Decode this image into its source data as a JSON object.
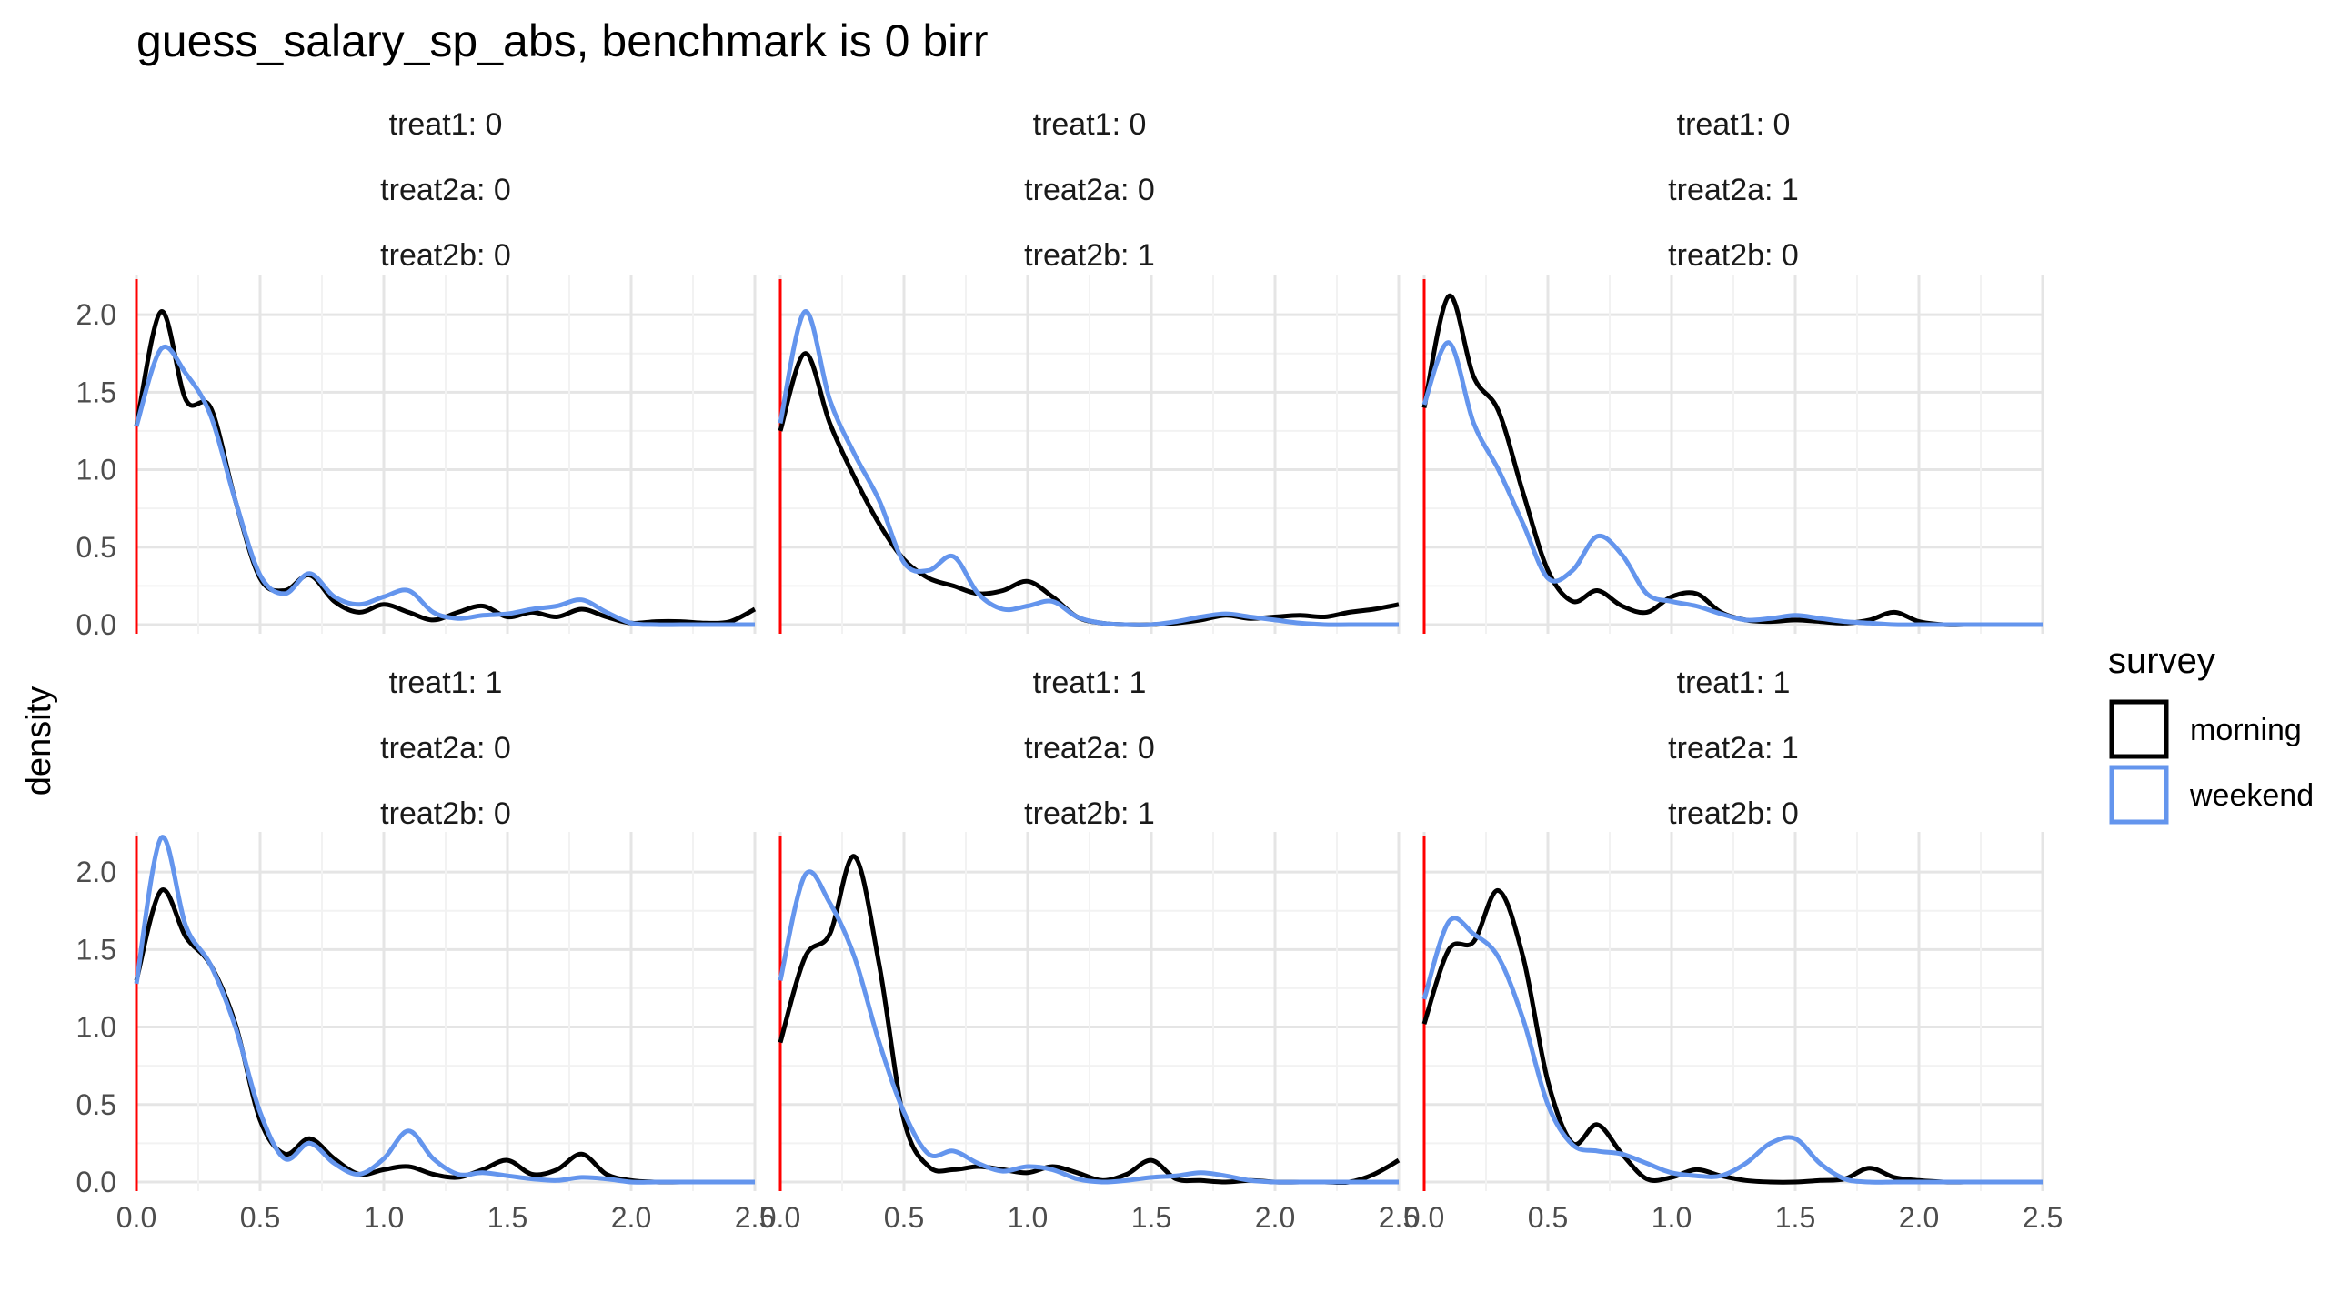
{
  "chart_data": {
    "type": "line",
    "title": "guess_salary_sp_abs, benchmark is 0 birr",
    "xlabel": "",
    "ylabel": "density",
    "xlim": [
      0,
      2.5
    ],
    "ylim": [
      0,
      2.2
    ],
    "x_ticks": [
      "0.0",
      "0.5",
      "1.0",
      "1.5",
      "2.0",
      "2.5"
    ],
    "y_ticks": [
      "0.0",
      "0.5",
      "1.0",
      "1.5",
      "2.0"
    ],
    "benchmark_line": {
      "x": 0,
      "color": "#ff0000"
    },
    "grid": true,
    "legend": {
      "title": "survey",
      "position": "right",
      "entries": [
        {
          "name": "morning",
          "color": "#000000"
        },
        {
          "name": "weekend",
          "color": "#6495ed"
        }
      ]
    },
    "x": [
      0.0,
      0.1,
      0.2,
      0.3,
      0.4,
      0.5,
      0.6,
      0.7,
      0.8,
      0.9,
      1.0,
      1.1,
      1.2,
      1.3,
      1.4,
      1.5,
      1.6,
      1.7,
      1.8,
      1.9,
      2.0,
      2.1,
      2.2,
      2.3,
      2.4,
      2.5
    ],
    "panels": [
      {
        "strip": [
          "treat1: 0",
          "treat2a: 0",
          "treat2b: 0"
        ],
        "series": [
          {
            "name": "morning",
            "values": [
              1.28,
              2.02,
              1.45,
              1.4,
              0.8,
              0.3,
              0.22,
              0.32,
              0.15,
              0.08,
              0.13,
              0.08,
              0.03,
              0.08,
              0.12,
              0.05,
              0.08,
              0.05,
              0.1,
              0.05,
              0.01,
              0.02,
              0.02,
              0.01,
              0.02,
              0.1
            ]
          },
          {
            "name": "weekend",
            "values": [
              1.28,
              1.78,
              1.62,
              1.35,
              0.8,
              0.32,
              0.2,
              0.33,
              0.18,
              0.13,
              0.18,
              0.22,
              0.08,
              0.04,
              0.06,
              0.07,
              0.1,
              0.12,
              0.16,
              0.08,
              0.01,
              0.0,
              0.0,
              0.0,
              0.0,
              0.0
            ]
          }
        ]
      },
      {
        "strip": [
          "treat1: 0",
          "treat2a: 0",
          "treat2b: 1"
        ],
        "series": [
          {
            "name": "morning",
            "values": [
              1.25,
              1.75,
              1.3,
              0.95,
              0.65,
              0.42,
              0.3,
              0.25,
              0.2,
              0.22,
              0.28,
              0.18,
              0.05,
              0.01,
              0.0,
              0.0,
              0.01,
              0.03,
              0.06,
              0.04,
              0.05,
              0.06,
              0.05,
              0.08,
              0.1,
              0.13
            ]
          },
          {
            "name": "weekend",
            "values": [
              1.3,
              2.02,
              1.45,
              1.1,
              0.8,
              0.4,
              0.35,
              0.44,
              0.2,
              0.1,
              0.12,
              0.15,
              0.05,
              0.01,
              0.0,
              0.0,
              0.02,
              0.05,
              0.07,
              0.05,
              0.03,
              0.01,
              0.0,
              0.0,
              0.0,
              0.0
            ]
          }
        ]
      },
      {
        "strip": [
          "treat1: 0",
          "treat2a: 1",
          "treat2b: 0"
        ],
        "series": [
          {
            "name": "morning",
            "values": [
              1.4,
              2.12,
              1.6,
              1.38,
              0.85,
              0.35,
              0.15,
              0.22,
              0.12,
              0.08,
              0.18,
              0.2,
              0.08,
              0.03,
              0.02,
              0.03,
              0.02,
              0.01,
              0.03,
              0.08,
              0.02,
              0.0,
              0.0,
              0.0,
              0.0,
              0.0
            ]
          },
          {
            "name": "weekend",
            "values": [
              1.42,
              1.82,
              1.3,
              1.0,
              0.65,
              0.3,
              0.35,
              0.57,
              0.45,
              0.2,
              0.15,
              0.12,
              0.07,
              0.03,
              0.04,
              0.06,
              0.04,
              0.02,
              0.01,
              0.0,
              0.0,
              0.0,
              0.0,
              0.0,
              0.0,
              0.0
            ]
          }
        ]
      },
      {
        "strip": [
          "treat1: 1",
          "treat2a: 0",
          "treat2b: 0"
        ],
        "series": [
          {
            "name": "morning",
            "values": [
              1.3,
              1.88,
              1.58,
              1.4,
              1.02,
              0.4,
              0.18,
              0.28,
              0.15,
              0.05,
              0.08,
              0.1,
              0.05,
              0.03,
              0.08,
              0.14,
              0.05,
              0.08,
              0.18,
              0.05,
              0.01,
              0.0,
              0.0,
              0.0,
              0.0,
              0.0
            ]
          },
          {
            "name": "weekend",
            "values": [
              1.28,
              2.22,
              1.65,
              1.4,
              1.0,
              0.45,
              0.15,
              0.25,
              0.12,
              0.05,
              0.15,
              0.33,
              0.15,
              0.05,
              0.06,
              0.04,
              0.02,
              0.01,
              0.03,
              0.02,
              0.0,
              0.0,
              0.0,
              0.0,
              0.0,
              0.0
            ]
          }
        ]
      },
      {
        "strip": [
          "treat1: 1",
          "treat2a: 0",
          "treat2b: 1"
        ],
        "series": [
          {
            "name": "morning",
            "values": [
              0.9,
              1.45,
              1.6,
              2.1,
              1.4,
              0.4,
              0.1,
              0.08,
              0.1,
              0.08,
              0.06,
              0.1,
              0.06,
              0.01,
              0.05,
              0.14,
              0.02,
              0.01,
              0.0,
              0.01,
              0.0,
              0.0,
              0.0,
              0.0,
              0.05,
              0.14
            ]
          },
          {
            "name": "weekend",
            "values": [
              1.3,
              1.98,
              1.8,
              1.45,
              0.9,
              0.45,
              0.18,
              0.2,
              0.12,
              0.07,
              0.1,
              0.08,
              0.02,
              0.0,
              0.01,
              0.03,
              0.04,
              0.06,
              0.04,
              0.01,
              0.0,
              0.0,
              0.0,
              0.0,
              0.0,
              0.0
            ]
          }
        ]
      },
      {
        "strip": [
          "treat1: 1",
          "treat2a: 1",
          "treat2b: 0"
        ],
        "series": [
          {
            "name": "morning",
            "values": [
              1.02,
              1.5,
              1.55,
              1.88,
              1.45,
              0.65,
              0.25,
              0.37,
              0.18,
              0.02,
              0.03,
              0.08,
              0.04,
              0.01,
              0.0,
              0.0,
              0.01,
              0.02,
              0.09,
              0.03,
              0.01,
              0.0,
              0.0,
              0.0,
              0.0,
              0.0
            ]
          },
          {
            "name": "weekend",
            "values": [
              1.18,
              1.68,
              1.6,
              1.45,
              1.05,
              0.5,
              0.24,
              0.2,
              0.18,
              0.12,
              0.06,
              0.04,
              0.04,
              0.12,
              0.25,
              0.28,
              0.12,
              0.02,
              0.0,
              0.0,
              0.0,
              0.0,
              0.0,
              0.0,
              0.0,
              0.0
            ]
          }
        ]
      }
    ]
  }
}
